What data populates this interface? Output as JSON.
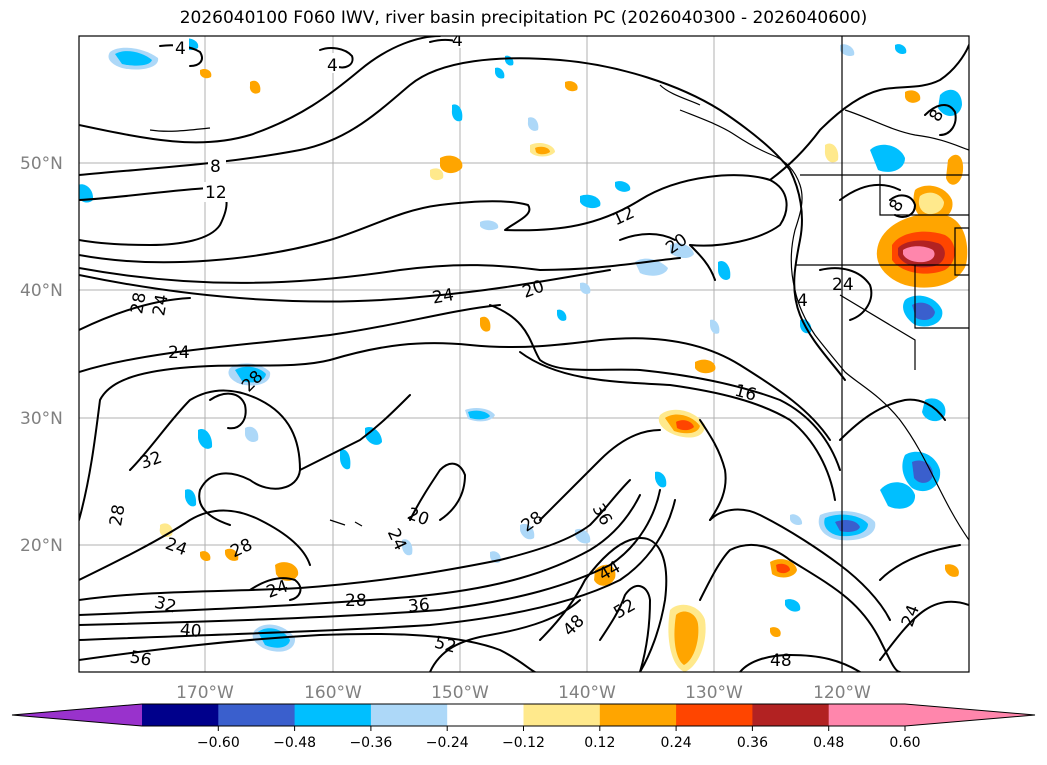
{
  "title": "2026040100 F060 IWV, river basin precipitation PC (2026040300 - 2026040600)",
  "map": {
    "lat_labels": [
      "50°N",
      "40°N",
      "30°N",
      "20°N"
    ],
    "lon_labels": [
      "170°W",
      "160°W",
      "150°W",
      "140°W",
      "130°W",
      "120°W"
    ],
    "grid": true,
    "contour_labels": [
      "4",
      "4",
      "4",
      "8",
      "12",
      "12",
      "20",
      "20",
      "24",
      "24",
      "24",
      "28",
      "24",
      "28",
      "32",
      "28",
      "24",
      "28",
      "24",
      "20",
      "28",
      "24",
      "32",
      "40",
      "28",
      "36",
      "52",
      "56",
      "44",
      "52",
      "48",
      "48",
      "16",
      "36",
      "24",
      "8",
      "4",
      "8"
    ]
  },
  "colorbar": {
    "orientation": "horizontal",
    "extend": "both",
    "ticks": [
      "-0.60",
      "-0.48",
      "-0.36",
      "-0.24",
      "-0.12",
      "0.12",
      "0.24",
      "0.36",
      "0.48",
      "0.60"
    ],
    "colors": [
      "#9932cc",
      "#00008b",
      "#3a5fcd",
      "#00bfff",
      "#add8f8",
      "#ffffff",
      "#ffe98c",
      "#ffa500",
      "#ff4500",
      "#b22222",
      "#ff86ac",
      "#ff86ac"
    ]
  }
}
